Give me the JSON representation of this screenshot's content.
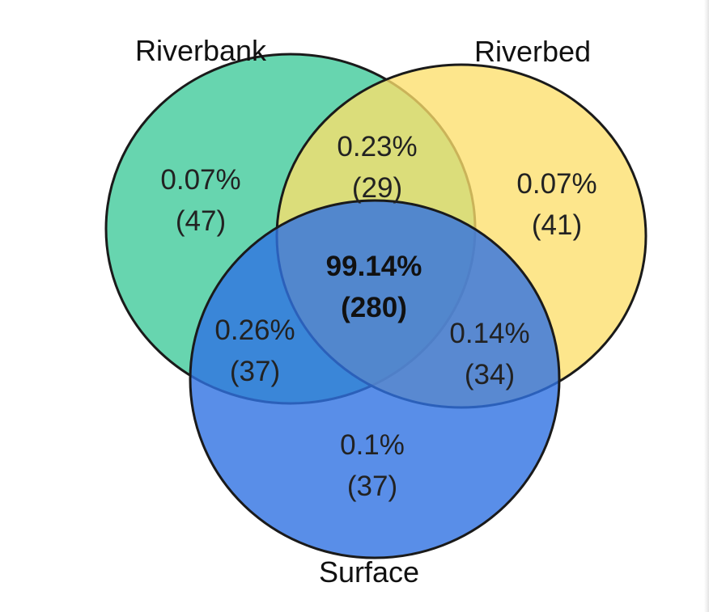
{
  "sets": [
    {
      "key": "riverbank",
      "label": "Riverbank",
      "color": "#5fd3ab"
    },
    {
      "key": "riverbed",
      "label": "Riverbed",
      "color": "#fddf6b"
    },
    {
      "key": "surface",
      "label": "Surface",
      "color": "#3f80e6"
    }
  ],
  "outline_color": "#1a1a1a",
  "regions": {
    "riverbank_only": {
      "percent": "0.07%",
      "count": "(47)"
    },
    "riverbed_only": {
      "percent": "0.07%",
      "count": "(41)"
    },
    "riverbank_riverbed": {
      "percent": "0.23%",
      "count": "(29)"
    },
    "riverbank_riverbed_surface": {
      "percent": "99.14%",
      "count": "(280)"
    },
    "riverbank_surface": {
      "percent": "0.26%",
      "count": "(37)"
    },
    "riverbed_surface": {
      "percent": "0.14%",
      "count": "(34)"
    },
    "surface_only": {
      "percent": "0.1%",
      "count": "(37)"
    }
  }
}
